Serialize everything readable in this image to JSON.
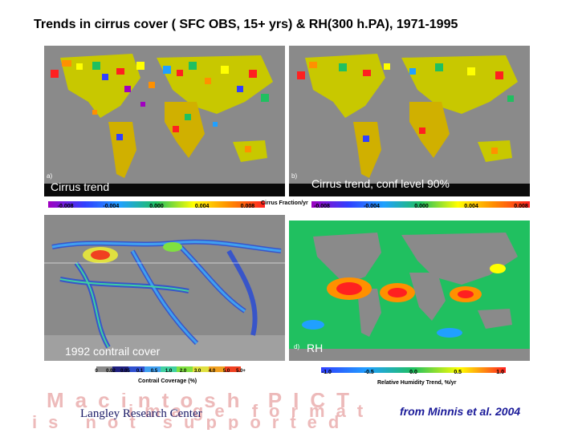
{
  "title": "Trends in cirrus cover ( SFC OBS, 15+ yrs) & RH(300 h.PA), 1971-1995",
  "panels": {
    "a": {
      "tag": "a)",
      "label": "Cirrus trend"
    },
    "b": {
      "tag": "b)",
      "label": "Cirrus trend,  conf  level  90%"
    },
    "c": {
      "label": "1992 contrail cover"
    },
    "d": {
      "tag": "d)",
      "label": "RH"
    }
  },
  "colorbars": {
    "top_left_ticks": [
      "-0.008",
      "-0.004",
      "0.000",
      "0.004",
      "0.008"
    ],
    "top_right_ticks": [
      "-0.008",
      "-0.004",
      "0.000",
      "0.004",
      "0.008"
    ],
    "top_title": "Cirrus Fraction/yr",
    "contrail_ticks": [
      "0",
      "0.02",
      "0.05",
      "0.1",
      "0.5",
      "1.0",
      "2.0",
      "3.0",
      "4.0",
      "5.0",
      "5.0+"
    ],
    "contrail_title": "Contrail Coverage (%)",
    "rh_ticks": [
      "-1.0",
      "-0.5",
      "0.0",
      "0.5",
      "1.0"
    ],
    "rh_title": "Relative Humidity Trend, %/yr"
  },
  "watermark": {
    "line1": "Macintosh PICT",
    "line2": "image format",
    "line3": "is not supported"
  },
  "footer": {
    "left": "Langley Research Center",
    "right": "from Minnis et al. 2004"
  },
  "colors": {
    "ocean_gray": "#8a8a8a",
    "trend_scale": [
      "#a000c0",
      "#3040ff",
      "#20a0ff",
      "#20c060",
      "#ffff00",
      "#ff9000",
      "#ff2020"
    ],
    "contrail_scale": [
      "#202080",
      "#3050d0",
      "#40a0f0",
      "#40d0a0",
      "#80e040",
      "#e0e040",
      "#f0a020",
      "#f04020",
      "#ffffff"
    ]
  }
}
